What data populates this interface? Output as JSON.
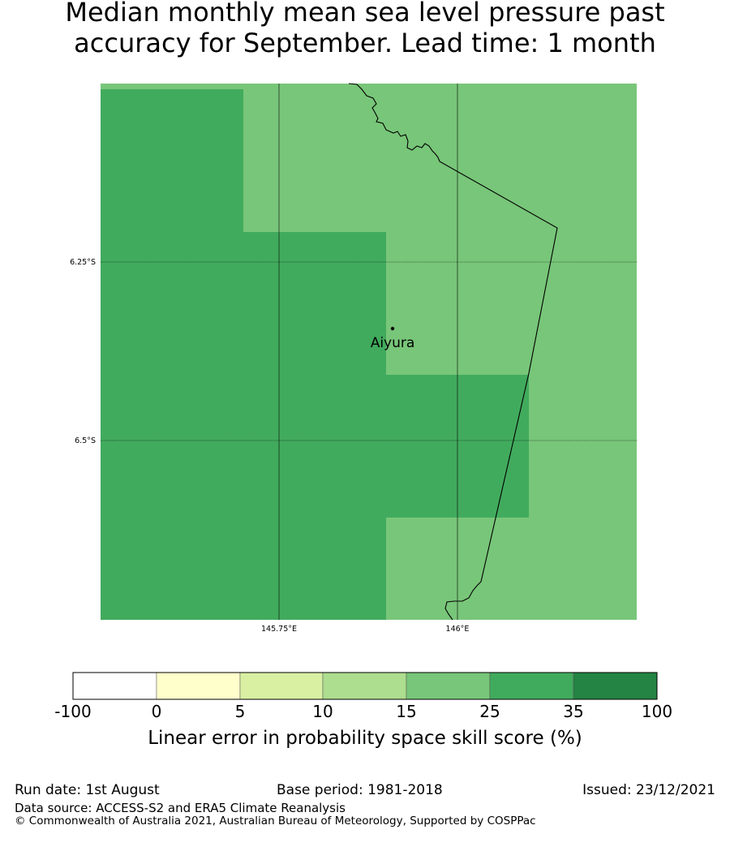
{
  "title": {
    "line1": "Median monthly mean sea level pressure past",
    "line2": "accuracy for September. Lead time: 1 month"
  },
  "map": {
    "location_label": "Aiyura",
    "lat_labels": [
      "6.25°S",
      "6.5°S"
    ],
    "lon_labels": [
      "145.75°E",
      "146°E"
    ],
    "colors": {
      "band_15_25": "#78c679",
      "band_25_35": "#41ab5d",
      "coastline": "#000000"
    }
  },
  "colorbar": {
    "label": "Linear error in probability space skill score (%)",
    "ticks": [
      "-100",
      "0",
      "5",
      "10",
      "15",
      "25",
      "35",
      "100"
    ],
    "colors": [
      "#ffffff",
      "#ffffcc",
      "#d9f0a3",
      "#addd8e",
      "#78c679",
      "#41ab5d",
      "#238443"
    ]
  },
  "footer": {
    "run_date": "Run date: 1st August",
    "base_period": "Base period: 1981-2018",
    "issued": "Issued: 23/12/2021",
    "data_source": "Data source: ACCESS-S2 and ERA5 Climate Reanalysis",
    "copyright": "© Commonwealth of Australia 2021, Australian Bureau of Meteorology, Supported by COSPPac"
  }
}
